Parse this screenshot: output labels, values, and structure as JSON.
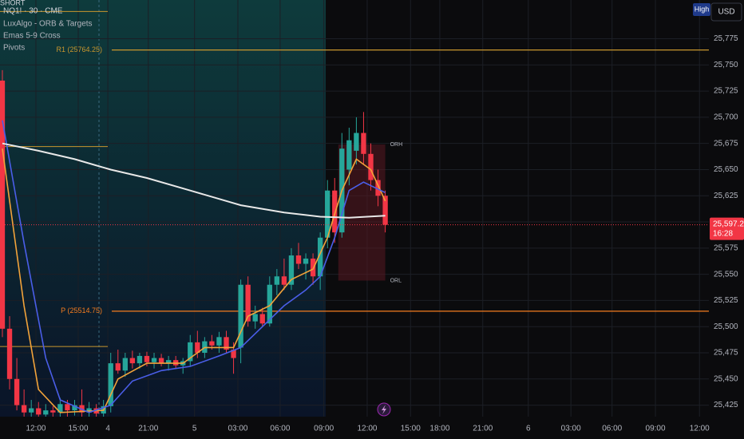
{
  "chart_data": {
    "type": "candlestick",
    "title": "NQ1! · 30 · CME",
    "indicators": [
      "LuxAlgo - ORB & Targets",
      "Emas 5-9 Cross",
      "Pivots"
    ],
    "corner_label": "SHORT",
    "header_buttons": [
      "High",
      "USD"
    ],
    "up_color": "#26a69a",
    "down_color": "#f23645",
    "open": [
      25735,
      25498,
      25450,
      25425,
      25418,
      25422,
      25416,
      25420,
      25418,
      25426,
      25420,
      25425,
      25418,
      25422,
      25417,
      25424,
      25465,
      25458,
      25470,
      25465,
      25472,
      25466,
      25470,
      25465,
      25468,
      25463,
      25467,
      25485,
      25475,
      25486,
      25482,
      25490,
      25478,
      25480,
      25540,
      25505,
      25512,
      25503,
      25540,
      25548,
      25540,
      25568,
      25560,
      25565,
      25548,
      25585,
      25630,
      25590,
      25650,
      25668,
      25685,
      25665,
      25640,
      25625
    ],
    "high": [
      25745,
      25510,
      25470,
      25440,
      25430,
      25428,
      25426,
      25424,
      25432,
      25430,
      25430,
      25440,
      25428,
      25426,
      25430,
      25475,
      25478,
      25475,
      25477,
      25475,
      25476,
      25475,
      25474,
      25472,
      25472,
      25470,
      25492,
      25496,
      25490,
      25492,
      25495,
      25496,
      25485,
      25545,
      25548,
      25520,
      25518,
      25548,
      25555,
      25565,
      25575,
      25580,
      25570,
      25570,
      25590,
      25640,
      25642,
      25685,
      25690,
      25700,
      25705,
      25675,
      25650,
      25630
    ],
    "low": [
      25490,
      25440,
      25420,
      25414,
      25414,
      25414,
      25414,
      25414,
      25414,
      25414,
      25415,
      25414,
      25414,
      25414,
      25414,
      25418,
      25455,
      25452,
      25460,
      25460,
      25462,
      25460,
      25462,
      25458,
      25460,
      25455,
      25462,
      25470,
      25470,
      25478,
      25475,
      25475,
      25455,
      25465,
      25500,
      25498,
      25500,
      25500,
      25530,
      25535,
      25535,
      25555,
      25545,
      25540,
      25535,
      25575,
      25580,
      25585,
      25635,
      25655,
      25655,
      25630,
      25615,
      25590
    ],
    "close": [
      25498,
      25450,
      25425,
      25418,
      25422,
      25416,
      25420,
      25418,
      25426,
      25420,
      25425,
      25418,
      25422,
      25417,
      25424,
      25465,
      25458,
      25470,
      25465,
      25472,
      25466,
      25470,
      25465,
      25468,
      25463,
      25467,
      25485,
      25475,
      25486,
      25482,
      25490,
      25478,
      25470,
      25540,
      25505,
      25512,
      25503,
      25540,
      25548,
      25540,
      25568,
      25560,
      25565,
      25548,
      25585,
      25630,
      25590,
      25670,
      25678,
      25685,
      25665,
      25640,
      25625,
      25597.25
    ],
    "lines": [
      {
        "color": "#f2a33a",
        "x": [
          0,
          3,
          5,
          8,
          14,
          16,
          20,
          25,
          28,
          32,
          34,
          37,
          40,
          43,
          45,
          47,
          49,
          51,
          53
        ],
        "values": [
          25670,
          25520,
          25440,
          25418,
          25420,
          25450,
          25465,
          25465,
          25480,
          25480,
          25510,
          25520,
          25545,
          25555,
          25585,
          25630,
          25660,
          25650,
          25620
        ]
      },
      {
        "color": "#4a5ee8",
        "x": [
          0,
          3,
          6,
          8,
          12,
          15,
          18,
          22,
          26,
          30,
          33,
          36,
          39,
          42,
          44,
          46,
          48,
          50,
          53
        ],
        "values": [
          25697,
          25580,
          25470,
          25430,
          25418,
          25425,
          25448,
          25458,
          25462,
          25472,
          25480,
          25500,
          25520,
          25535,
          25548,
          25585,
          25630,
          25638,
          25628
        ]
      },
      {
        "color": "#e8e8e8",
        "x": [
          0,
          5,
          10,
          15,
          20,
          26,
          33,
          39,
          44,
          48,
          53
        ],
        "values": [
          25675,
          25668,
          25660,
          25650,
          25642,
          25630,
          25616,
          25609,
          25605,
          25604,
          25606
        ]
      }
    ],
    "levels": [
      {
        "value": 25764.25,
        "label": "R1 (25764.25)",
        "color": "#c9962e"
      },
      {
        "value": 25514.75,
        "label": "P (25514.75)",
        "color": "#f57c1f"
      }
    ],
    "session_levels": [
      25801,
      25672,
      25481
    ],
    "orb": {
      "high": 25674,
      "low": 25544,
      "high_label": "ORH",
      "low_label": "ORL",
      "x": [
        46.5,
        53
      ]
    },
    "last_price": {
      "value": 25597.25,
      "label": "25,597.25"
    },
    "countdown": "16:28",
    "xlim": [
      -0.33,
      97.8
    ],
    "xticks": [
      {
        "value": 4.64,
        "label": "12:00"
      },
      {
        "value": 10.5,
        "label": "15:00"
      },
      {
        "value": 14.6,
        "label": "4"
      },
      {
        "value": 20.2,
        "label": "21:00"
      },
      {
        "value": 26.6,
        "label": "5"
      },
      {
        "value": 32.6,
        "label": "03:00"
      },
      {
        "value": 38.45,
        "label": "06:00"
      },
      {
        "value": 44.5,
        "label": "09:00"
      },
      {
        "value": 50.5,
        "label": "12:00"
      },
      {
        "value": 56.5,
        "label": "15:00"
      },
      {
        "value": 60.55,
        "label": "18:00"
      },
      {
        "value": 66.5,
        "label": "21:00"
      },
      {
        "value": 72.8,
        "label": "6"
      },
      {
        "value": 78.7,
        "label": "03:00"
      },
      {
        "value": 84.4,
        "label": "06:00"
      },
      {
        "value": 90.4,
        "label": "09:00"
      },
      {
        "value": 96.5,
        "label": "12:00"
      }
    ],
    "ylim": [
      25414,
      25812
    ],
    "yticks": [
      {
        "value": 25425,
        "label": "25,425"
      },
      {
        "value": 25450,
        "label": "25,450"
      },
      {
        "value": 25475,
        "label": "25,475"
      },
      {
        "value": 25500,
        "label": "25,500"
      },
      {
        "value": 25525,
        "label": "25,525"
      },
      {
        "value": 25550,
        "label": "25,550"
      },
      {
        "value": 25575,
        "label": "25,575"
      },
      {
        "value": 25600,
        "label": "25,600"
      },
      {
        "value": 25625,
        "label": "25,625"
      },
      {
        "value": 25650,
        "label": "25,650"
      },
      {
        "value": 25675,
        "label": "25,675"
      },
      {
        "value": 25700,
        "label": "25,700"
      },
      {
        "value": 25725,
        "label": "25,725"
      },
      {
        "value": 25750,
        "label": "25,750"
      },
      {
        "value": 25775,
        "label": "25,775"
      }
    ],
    "grid": true
  }
}
